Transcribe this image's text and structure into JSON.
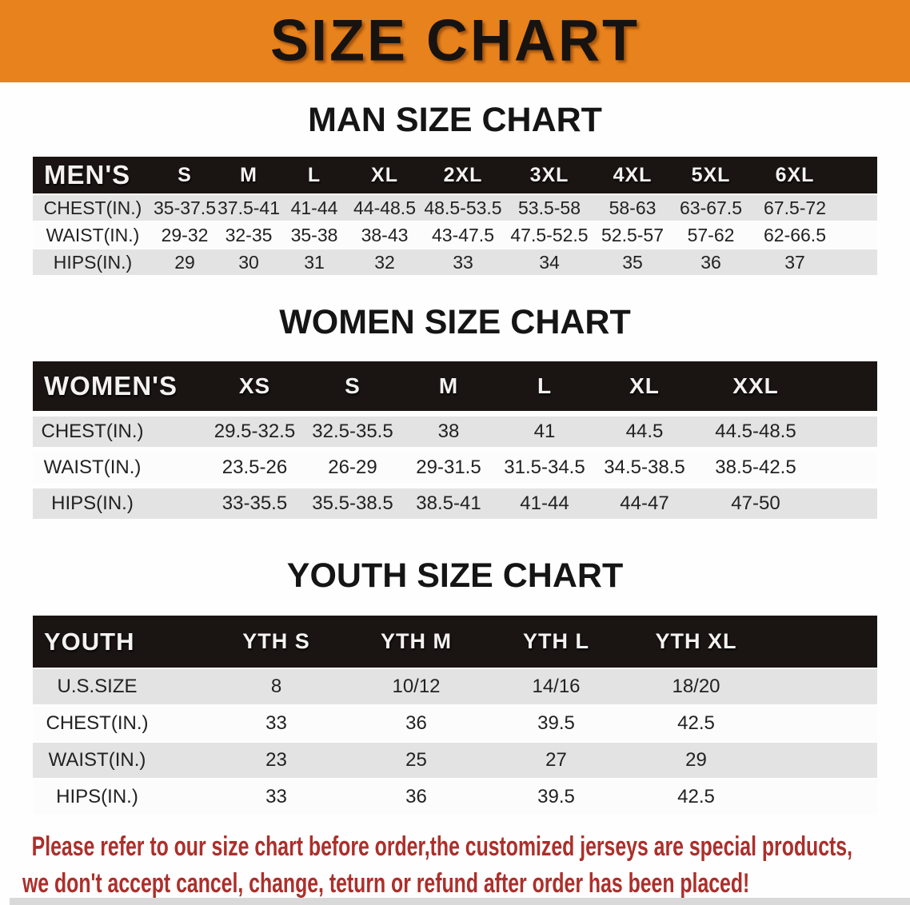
{
  "banner": {
    "title": "SIZE CHART"
  },
  "colors": {
    "banner_orange": "#E8821C",
    "table_header_black": "#1A1513",
    "row_gray": "#E4E3E3",
    "footer_red": "#AC2F2B"
  },
  "men": {
    "heading": "MAN SIZE CHART",
    "label": "MEN'S",
    "columns": [
      "S",
      "M",
      "L",
      "XL",
      "2XL",
      "3XL",
      "4XL",
      "5XL",
      "6XL"
    ],
    "rows": [
      {
        "label": "CHEST(IN.)",
        "values": [
          "35-37.5",
          "37.5-41",
          "41-44",
          "44-48.5",
          "48.5-53.5",
          "53.5-58",
          "58-63",
          "63-67.5",
          "67.5-72"
        ]
      },
      {
        "label": "WAIST(IN.)",
        "values": [
          "29-32",
          "32-35",
          "35-38",
          "38-43",
          "43-47.5",
          "47.5-52.5",
          "52.5-57",
          "57-62",
          "62-66.5"
        ]
      },
      {
        "label": "HIPS(IN.)",
        "values": [
          "29",
          "30",
          "31",
          "32",
          "33",
          "34",
          "35",
          "36",
          "37"
        ]
      }
    ]
  },
  "women": {
    "heading": "WOMEN SIZE CHART",
    "label": "WOMEN'S",
    "columns": [
      "XS",
      "S",
      "M",
      "L",
      "XL",
      "XXL"
    ],
    "rows": [
      {
        "label": "CHEST(IN.)",
        "values": [
          "29.5-32.5",
          "32.5-35.5",
          "38",
          "41",
          "44.5",
          "44.5-48.5"
        ]
      },
      {
        "label": "WAIST(IN.)",
        "values": [
          "23.5-26",
          "26-29",
          "29-31.5",
          "31.5-34.5",
          "34.5-38.5",
          "38.5-42.5"
        ]
      },
      {
        "label": "HIPS(IN.)",
        "values": [
          "33-35.5",
          "35.5-38.5",
          "38.5-41",
          "41-44",
          "44-47",
          "47-50"
        ]
      }
    ]
  },
  "youth": {
    "heading": "YOUTH SIZE CHART",
    "label": "YOUTH",
    "columns": [
      "YTH S",
      "YTH M",
      "YTH L",
      "YTH XL"
    ],
    "rows": [
      {
        "label": "U.S.SIZE",
        "values": [
          "8",
          "10/12",
          "14/16",
          "18/20"
        ]
      },
      {
        "label": "CHEST(IN.)",
        "values": [
          "33",
          "36",
          "39.5",
          "42.5"
        ]
      },
      {
        "label": "WAIST(IN.)",
        "values": [
          "23",
          "25",
          "27",
          "29"
        ]
      },
      {
        "label": "HIPS(IN.)",
        "values": [
          "33",
          "36",
          "39.5",
          "42.5"
        ]
      }
    ]
  },
  "footer": {
    "line1": "Please refer to our size chart before order,the customized jerseys are special products,",
    "line2": "we don't accept cancel, change, teturn or refund after order has been placed!"
  }
}
